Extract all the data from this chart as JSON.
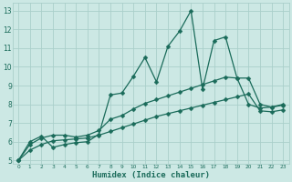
{
  "xlabel": "Humidex (Indice chaleur)",
  "bg_color": "#cce8e4",
  "grid_color": "#aacfca",
  "line_color": "#1a6b5a",
  "xlim": [
    -0.5,
    23.5
  ],
  "ylim": [
    4.8,
    13.4
  ],
  "xticks": [
    0,
    1,
    2,
    3,
    4,
    5,
    6,
    7,
    8,
    9,
    10,
    11,
    12,
    13,
    14,
    15,
    16,
    17,
    18,
    19,
    20,
    21,
    22,
    23
  ],
  "yticks": [
    5,
    6,
    7,
    8,
    9,
    10,
    11,
    12,
    13
  ],
  "series1_x": [
    0,
    1,
    2,
    3,
    4,
    5,
    6,
    7,
    8,
    9,
    10,
    11,
    12,
    13,
    14,
    15,
    16,
    17,
    18,
    19,
    20,
    21,
    22,
    23
  ],
  "series1_y": [
    5.0,
    6.0,
    6.3,
    5.7,
    5.85,
    5.95,
    6.0,
    6.4,
    8.5,
    8.6,
    9.5,
    10.5,
    9.2,
    11.1,
    11.9,
    13.0,
    8.8,
    11.4,
    11.6,
    9.4,
    8.0,
    7.8,
    7.85,
    8.0
  ],
  "series2_x": [
    0,
    1,
    2,
    3,
    4,
    5,
    6,
    7,
    8,
    9,
    10,
    11,
    12,
    13,
    14,
    15,
    16,
    17,
    18,
    19,
    20,
    21,
    22,
    23
  ],
  "series2_y": [
    5.0,
    5.85,
    6.2,
    6.35,
    6.35,
    6.25,
    6.35,
    6.6,
    7.2,
    7.4,
    7.75,
    8.05,
    8.25,
    8.45,
    8.65,
    8.85,
    9.05,
    9.25,
    9.45,
    9.4,
    9.4,
    8.0,
    7.85,
    7.95
  ],
  "series3_x": [
    0,
    1,
    2,
    3,
    4,
    5,
    6,
    7,
    8,
    9,
    10,
    11,
    12,
    13,
    14,
    15,
    16,
    17,
    18,
    19,
    20,
    21,
    22,
    23
  ],
  "series3_y": [
    5.0,
    5.55,
    5.85,
    6.05,
    6.1,
    6.15,
    6.2,
    6.35,
    6.55,
    6.75,
    6.95,
    7.15,
    7.35,
    7.5,
    7.65,
    7.8,
    7.95,
    8.1,
    8.25,
    8.4,
    8.55,
    7.65,
    7.6,
    7.7
  ],
  "markersize": 2.5,
  "linewidth": 0.9,
  "xlabel_fontsize": 6.5,
  "tick_fontsize_x": 4.2,
  "tick_fontsize_y": 5.5
}
